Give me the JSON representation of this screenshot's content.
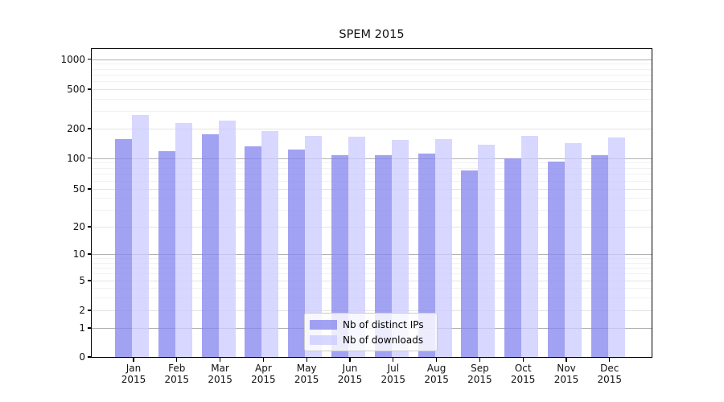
{
  "chart_data": {
    "type": "bar",
    "title": "SPEM 2015",
    "categories": [
      "Jan",
      "Feb",
      "Mar",
      "Apr",
      "May",
      "Jun",
      "Jul",
      "Aug",
      "Sep",
      "Oct",
      "Nov",
      "Dec"
    ],
    "x_year_suffix": "2015",
    "series": [
      {
        "name": "Nb of distinct IPs",
        "color": "#8888ee",
        "alpha": 0.78,
        "values": [
          155,
          118,
          176,
          131,
          121,
          106,
          107,
          111,
          76,
          100,
          92,
          107
        ]
      },
      {
        "name": "Nb of downloads",
        "color": "#ccccff",
        "alpha": 0.78,
        "values": [
          275,
          228,
          243,
          188,
          168,
          165,
          152,
          155,
          138,
          168,
          141,
          162
        ]
      }
    ],
    "y_axis": {
      "scale": "symlog",
      "tick_labels": [
        0,
        1,
        2,
        5,
        10,
        20,
        50,
        100,
        200,
        500,
        1000
      ],
      "major_grid_values": [
        1,
        10,
        100,
        1000
      ]
    },
    "grid": true,
    "legend_position": "lower-center-inside",
    "colors": {
      "major_gridline": "#b2b2b2",
      "labeled_gridline": "#e3e3e3",
      "minor_gridline": "#f1f1f1",
      "axis": "#000000"
    }
  }
}
